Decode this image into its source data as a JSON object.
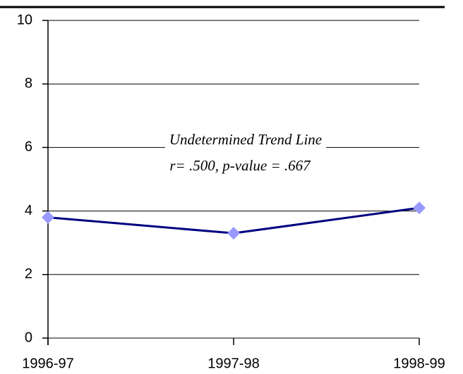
{
  "chart_data": {
    "type": "line",
    "categories": [
      "1996-97",
      "1997-98",
      "1998-99"
    ],
    "series": [
      {
        "name": null,
        "color": "#000080",
        "marker_color": "#9999ff",
        "values": [
          3.8,
          3.3,
          4.1
        ]
      }
    ],
    "ylim": [
      0,
      10
    ],
    "yticks": [
      0,
      2,
      4,
      6,
      8,
      10
    ],
    "grid": true,
    "annotations": [
      "Undetermined Trend Line",
      "r= .500, p-value = .667"
    ]
  }
}
